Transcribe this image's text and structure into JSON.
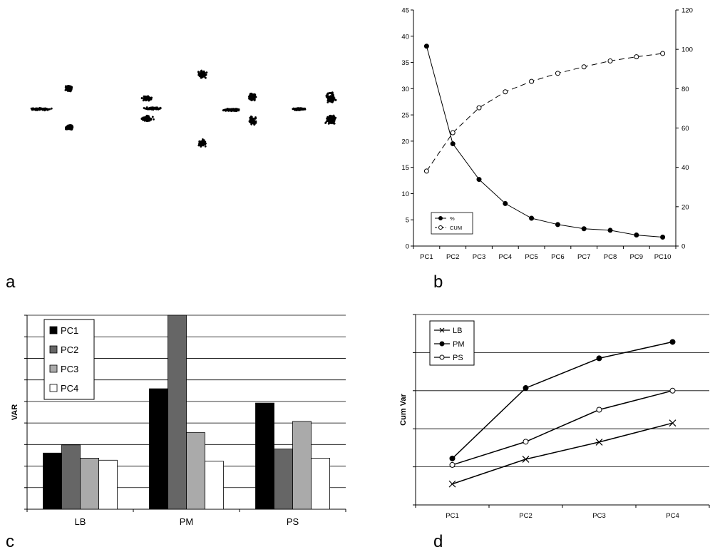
{
  "panel_labels": {
    "a": "a",
    "b": "b",
    "c": "c",
    "d": "d"
  },
  "chart_data": [
    {
      "panel": "a",
      "type": "scatter",
      "title": "",
      "clusters": [
        {
          "cx": 48,
          "cy": 93,
          "spread": [
            20,
            2
          ]
        },
        {
          "cx": 87,
          "cy": 64,
          "spread": [
            7,
            5
          ]
        },
        {
          "cx": 87,
          "cy": 119,
          "spread": [
            7,
            5
          ]
        },
        {
          "cx": 197,
          "cy": 78,
          "spread": [
            10,
            5
          ]
        },
        {
          "cx": 205,
          "cy": 92,
          "spread": [
            18,
            2
          ]
        },
        {
          "cx": 197,
          "cy": 106,
          "spread": [
            10,
            5
          ]
        },
        {
          "cx": 274,
          "cy": 44,
          "spread": [
            8,
            7
          ]
        },
        {
          "cx": 274,
          "cy": 141,
          "spread": [
            8,
            7
          ]
        },
        {
          "cx": 316,
          "cy": 94,
          "spread": [
            18,
            2
          ]
        },
        {
          "cx": 344,
          "cy": 76,
          "spread": [
            7,
            7
          ]
        },
        {
          "cx": 344,
          "cy": 109,
          "spread": [
            7,
            7
          ]
        },
        {
          "cx": 409,
          "cy": 93,
          "spread": [
            12,
            2
          ]
        },
        {
          "cx": 454,
          "cy": 77,
          "spread": [
            10,
            9
          ]
        },
        {
          "cx": 454,
          "cy": 108,
          "spread": [
            10,
            9
          ]
        }
      ]
    },
    {
      "panel": "b",
      "type": "line",
      "title": "",
      "categories": [
        "PC1",
        "PC2",
        "PC3",
        "PC4",
        "PC5",
        "PC6",
        "PC7",
        "PC8",
        "PC9",
        "PC10"
      ],
      "y_left": {
        "ylim": [
          0,
          45
        ],
        "ticks": [
          "0",
          "5",
          "10",
          "15",
          "20",
          "25",
          "30",
          "35",
          "40",
          "45"
        ]
      },
      "y_right": {
        "ylim": [
          0,
          120
        ],
        "ticks": [
          "0",
          "20",
          "40",
          "60",
          "80",
          "100",
          "120"
        ]
      },
      "series": [
        {
          "name": "%",
          "axis": "left",
          "marker": "filled",
          "dash": false,
          "values": [
            38.1,
            19.5,
            12.7,
            8.1,
            5.3,
            4.1,
            3.3,
            3.0,
            2.1,
            1.7
          ]
        },
        {
          "name": "CUM",
          "axis": "right",
          "marker": "open",
          "dash": true,
          "values": [
            38.1,
            57.6,
            70.3,
            78.4,
            83.7,
            87.8,
            91.1,
            94.1,
            96.2,
            97.9
          ]
        }
      ],
      "legend": "bottom-left",
      "grid": false
    },
    {
      "panel": "c",
      "type": "bar",
      "title": "",
      "ylabel": "VAR",
      "categories": [
        "LB",
        "PM",
        "PS"
      ],
      "ylim": [
        0,
        95
      ],
      "gridlines": 9,
      "series": [
        {
          "name": "PC1",
          "color": "#000000",
          "values": [
            27.5,
            59,
            52
          ]
        },
        {
          "name": "PC2",
          "color": "#666666",
          "values": [
            31.5,
            95,
            29.5
          ]
        },
        {
          "name": "PC3",
          "color": "#aaaaaa",
          "values": [
            25,
            37.5,
            43
          ]
        },
        {
          "name": "PC4",
          "color": "#ffffff",
          "values": [
            24,
            23.5,
            25
          ]
        }
      ],
      "legend": "top-left",
      "grid": true
    },
    {
      "panel": "d",
      "type": "line",
      "title": "",
      "ylabel": "Cum Var",
      "categories": [
        "PC1",
        "PC2",
        "PC3",
        "PC4"
      ],
      "ylim": [
        0,
        5
      ],
      "gridlines": 5,
      "series": [
        {
          "name": "LB",
          "marker": "x",
          "values": [
            0.55,
            1.2,
            1.65,
            2.15
          ]
        },
        {
          "name": "PM",
          "marker": "filled",
          "values": [
            1.22,
            3.07,
            3.85,
            4.28
          ]
        },
        {
          "name": "PS",
          "marker": "open",
          "values": [
            1.05,
            1.66,
            2.5,
            3.0
          ]
        }
      ],
      "legend": "top-left",
      "grid": true
    }
  ]
}
